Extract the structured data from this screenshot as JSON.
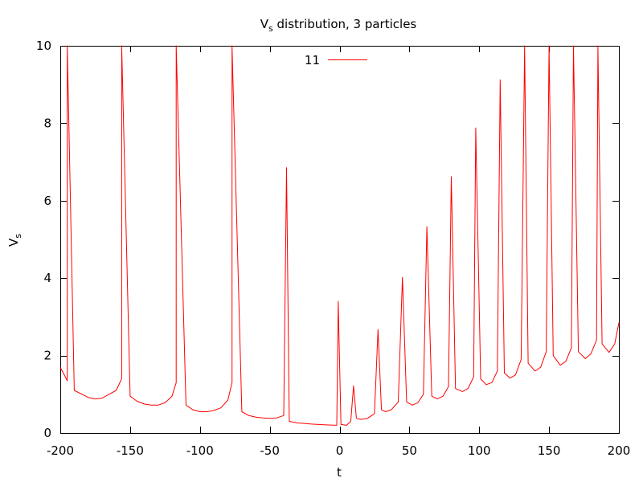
{
  "chart_data": {
    "type": "line",
    "title": {
      "main": "V",
      "sub": "s",
      "rest": " distribution, 3 particles"
    },
    "xlabel": "t",
    "ylabel": {
      "main": "V",
      "sub": "s"
    },
    "xlim": [
      -200,
      200
    ],
    "ylim": [
      0,
      10
    ],
    "x_ticks": [
      -200,
      -150,
      -100,
      -50,
      0,
      50,
      100,
      150,
      200
    ],
    "y_ticks": [
      0,
      2,
      4,
      6,
      8,
      10
    ],
    "grid": false,
    "legend_position": "top-center",
    "series": [
      {
        "name": "11",
        "color": "#ff0000",
        "baseline_points": [
          [
            -200,
            1.7
          ],
          [
            -195,
            1.35
          ],
          [
            -190,
            1.1
          ],
          [
            -180,
            0.92
          ],
          [
            -175,
            0.88
          ],
          [
            -170,
            0.9
          ],
          [
            -160,
            1.1
          ],
          [
            -156,
            1.4
          ],
          [
            -150,
            0.95
          ],
          [
            -145,
            0.82
          ],
          [
            -140,
            0.75
          ],
          [
            -135,
            0.72
          ],
          [
            -130,
            0.72
          ],
          [
            -125,
            0.78
          ],
          [
            -120,
            0.95
          ],
          [
            -117,
            1.3
          ],
          [
            -110,
            0.72
          ],
          [
            -105,
            0.6
          ],
          [
            -100,
            0.55
          ],
          [
            -95,
            0.55
          ],
          [
            -90,
            0.58
          ],
          [
            -85,
            0.65
          ],
          [
            -80,
            0.85
          ],
          [
            -77,
            1.3
          ],
          [
            -70,
            0.55
          ],
          [
            -65,
            0.45
          ],
          [
            -60,
            0.41
          ],
          [
            -55,
            0.39
          ],
          [
            -50,
            0.38
          ],
          [
            -45,
            0.39
          ],
          [
            -40,
            0.45
          ],
          [
            -36,
            0.3
          ],
          [
            -30,
            0.26
          ],
          [
            -20,
            0.23
          ],
          [
            -10,
            0.21
          ],
          [
            -2,
            0.2
          ],
          [
            1,
            0.22
          ],
          [
            5,
            0.2
          ],
          [
            8,
            0.3
          ],
          [
            12,
            0.38
          ],
          [
            15,
            0.35
          ],
          [
            20,
            0.38
          ],
          [
            25,
            0.5
          ],
          [
            30,
            0.6
          ],
          [
            33,
            0.55
          ],
          [
            37,
            0.6
          ],
          [
            42,
            0.8
          ],
          [
            48,
            0.8
          ],
          [
            52,
            0.72
          ],
          [
            56,
            0.78
          ],
          [
            60,
            1.0
          ],
          [
            66,
            0.95
          ],
          [
            70,
            0.88
          ],
          [
            74,
            0.95
          ],
          [
            78,
            1.2
          ],
          [
            83,
            1.15
          ],
          [
            88,
            1.07
          ],
          [
            92,
            1.15
          ],
          [
            96,
            1.45
          ],
          [
            101,
            1.4
          ],
          [
            105,
            1.25
          ],
          [
            109,
            1.3
          ],
          [
            113,
            1.6
          ],
          [
            118,
            1.55
          ],
          [
            122,
            1.42
          ],
          [
            126,
            1.5
          ],
          [
            130,
            1.9
          ],
          [
            135,
            1.8
          ],
          [
            140,
            1.6
          ],
          [
            144,
            1.7
          ],
          [
            148,
            2.1
          ],
          [
            153,
            2.0
          ],
          [
            158,
            1.75
          ],
          [
            162,
            1.85
          ],
          [
            166,
            2.2
          ],
          [
            171,
            2.1
          ],
          [
            176,
            1.92
          ],
          [
            180,
            2.05
          ],
          [
            184,
            2.4
          ],
          [
            188,
            2.3
          ],
          [
            193,
            2.08
          ],
          [
            197,
            2.3
          ],
          [
            200,
            2.85
          ]
        ],
        "peaks": [
          {
            "x": -195,
            "y": 10
          },
          {
            "x": -156,
            "y": 10
          },
          {
            "x": -117,
            "y": 10
          },
          {
            "x": -77,
            "y": 10
          },
          {
            "x": -38,
            "y": 6.85
          },
          {
            "x": -1,
            "y": 3.4
          },
          {
            "x": 10,
            "y": 1.22
          },
          {
            "x": 27.5,
            "y": 2.67
          },
          {
            "x": 45,
            "y": 4.02
          },
          {
            "x": 62.5,
            "y": 5.33
          },
          {
            "x": 80,
            "y": 6.62
          },
          {
            "x": 97.5,
            "y": 7.88
          },
          {
            "x": 115,
            "y": 9.12
          },
          {
            "x": 132.5,
            "y": 10
          },
          {
            "x": 150,
            "y": 10
          },
          {
            "x": 167.5,
            "y": 10
          },
          {
            "x": 185,
            "y": 10
          }
        ]
      }
    ]
  }
}
